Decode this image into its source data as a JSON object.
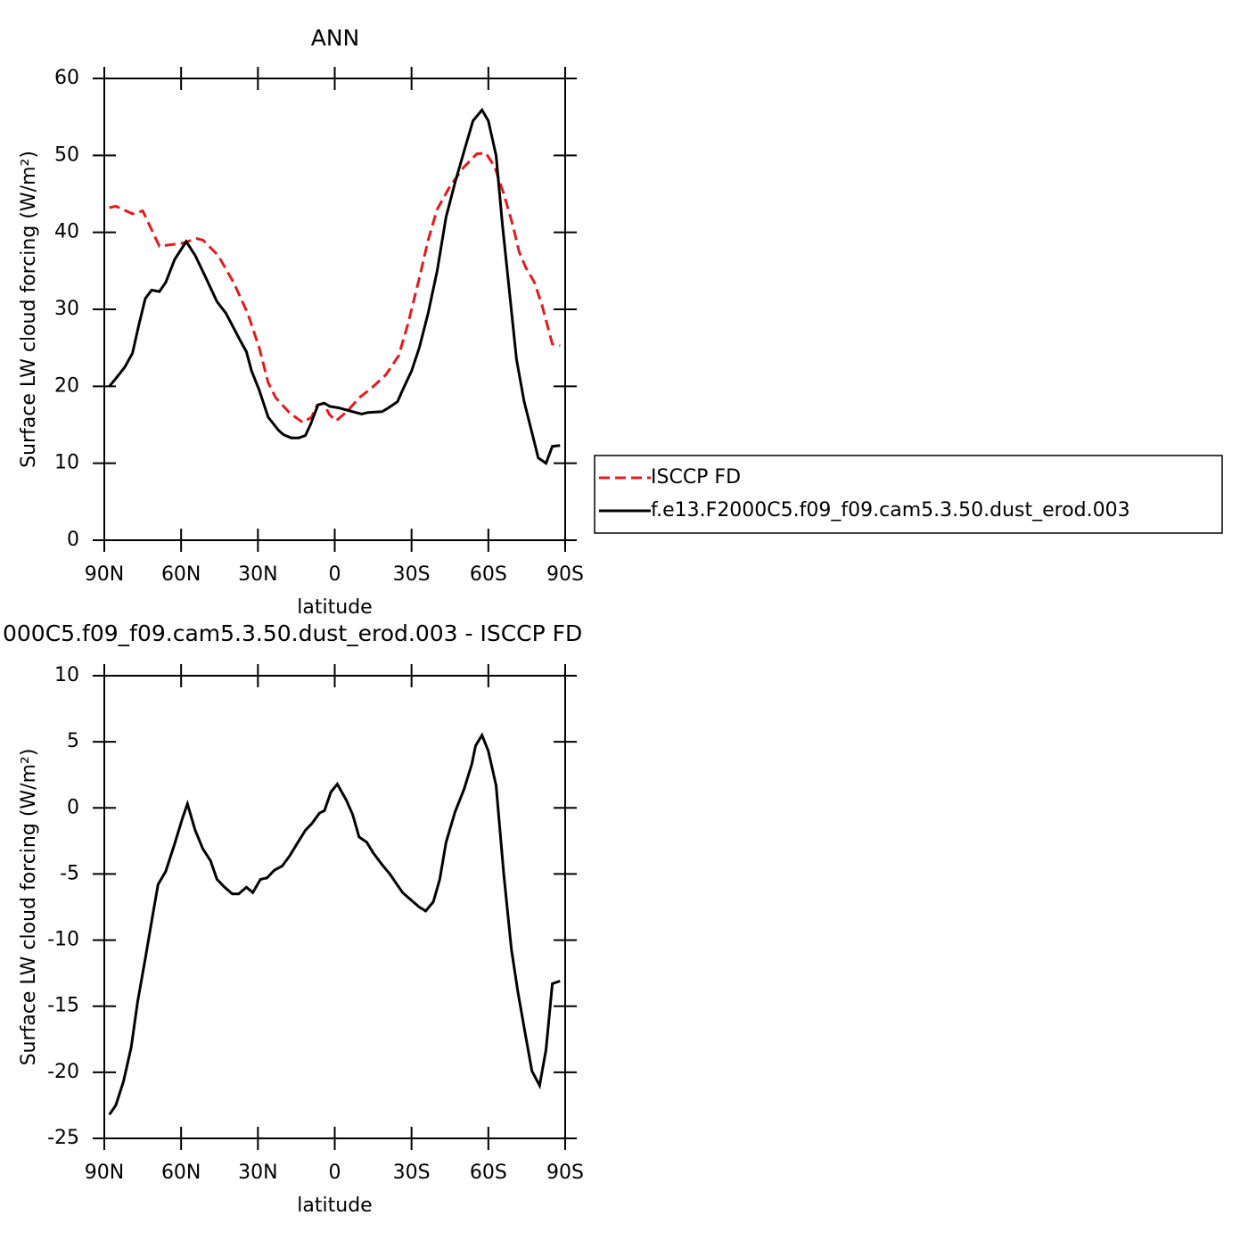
{
  "chart_data": [
    {
      "type": "line",
      "title": "ANN",
      "xlabel": "latitude",
      "ylabel": "Surface LW cloud forcing (W/m²)",
      "xlim": [
        90,
        -90
      ],
      "xticks": [
        {
          "value": 90,
          "label": "90N"
        },
        {
          "value": 60,
          "label": "60N"
        },
        {
          "value": 30,
          "label": "30N"
        },
        0,
        {
          "value": -30,
          "label": "30S"
        },
        {
          "value": -60,
          "label": "60S"
        },
        {
          "value": -90,
          "label": "90S"
        }
      ],
      "ylim": [
        0,
        60
      ],
      "yticks": [
        0,
        10,
        20,
        30,
        40,
        50,
        60
      ],
      "legend": "right",
      "series": [
        {
          "name": "ISCCP FD",
          "color": "#e41a1c",
          "line_style": "dashed",
          "x": [
            88,
            85.5,
            79,
            75,
            68.5,
            59.5,
            54,
            51.5,
            45.5,
            39.5,
            34,
            29.5,
            26,
            23,
            17.5,
            12.5,
            9,
            7,
            4.5,
            2,
            -0.5,
            -5,
            -9.5,
            -14.5,
            -20,
            -25,
            -28.5,
            -33,
            -36.5,
            -40,
            -45,
            -50.5,
            -55.5,
            -59,
            -62.5,
            -66,
            -69.5,
            -72,
            -74.5,
            -78,
            -81,
            -85,
            -88
          ],
          "values": [
            43.2,
            43.4,
            42.4,
            42.8,
            38.2,
            38.6,
            39.2,
            39.0,
            37.0,
            33.5,
            29.5,
            25,
            20.5,
            18.5,
            16.5,
            15.3,
            16.0,
            17.5,
            17.8,
            16.3,
            15.5,
            16.8,
            18.5,
            19.8,
            21.5,
            24,
            28,
            34,
            39,
            43,
            46,
            48.5,
            50.2,
            50.3,
            48.5,
            45,
            41,
            37.5,
            35.5,
            33.5,
            30.5,
            25.5,
            25.3
          ]
        },
        {
          "name": "f.e13.F2000C5.f09_f09.cam5.3.50.dust_erod.003",
          "color": "#000000",
          "line_style": "solid",
          "x": [
            88,
            85.5,
            82,
            79,
            76.5,
            74,
            71.5,
            68.5,
            66,
            62.5,
            58,
            54.5,
            50.5,
            46,
            42.5,
            37,
            34.5,
            32.5,
            29.5,
            26,
            22,
            20,
            17,
            14,
            11.5,
            9.5,
            6.5,
            4,
            2,
            -1.5,
            -6,
            -10.5,
            -13,
            -18.5,
            -21,
            -24.5,
            -26.5,
            -30,
            -33,
            -36.5,
            -40,
            -43.5,
            -47,
            -50.5,
            -54,
            -57.5,
            -60,
            -63,
            -65.5,
            -68.5,
            -71,
            -74,
            -77,
            -79.5,
            -82.5,
            -85,
            -88
          ],
          "values": [
            20,
            21,
            22.5,
            24.3,
            28,
            31.4,
            32.5,
            32.3,
            33.5,
            36.5,
            38.8,
            37,
            34.2,
            31,
            29.5,
            26,
            24.5,
            22,
            19.5,
            16,
            14.3,
            13.7,
            13.3,
            13.3,
            13.6,
            15,
            17.6,
            17.8,
            17.4,
            17.2,
            16.8,
            16.4,
            16.6,
            16.7,
            17.2,
            18,
            19.5,
            22,
            25,
            29.5,
            35,
            42,
            46.5,
            50.5,
            54.5,
            55.9,
            54.5,
            50,
            41,
            31.5,
            23.5,
            18,
            14,
            10.7,
            10,
            12.2,
            12.3
          ]
        }
      ]
    },
    {
      "type": "line",
      "title": "000C5.f09_f09.cam5.3.50.dust_erod.003 - ISCCP FD",
      "xlabel": "latitude",
      "ylabel": "Surface LW cloud forcing (W/m²)",
      "xlim": [
        90,
        -90
      ],
      "xticks": [
        {
          "value": 90,
          "label": "90N"
        },
        {
          "value": 60,
          "label": "60N"
        },
        {
          "value": 30,
          "label": "30N"
        },
        0,
        {
          "value": -30,
          "label": "30S"
        },
        {
          "value": -60,
          "label": "60S"
        },
        {
          "value": -90,
          "label": "90S"
        }
      ],
      "ylim": [
        -25,
        10
      ],
      "yticks": [
        -25,
        -20,
        -15,
        -10,
        -5,
        0,
        5,
        10
      ],
      "series": [
        {
          "color": "#000000",
          "line_style": "solid",
          "x": [
            88,
            85.5,
            82.5,
            79.5,
            77,
            74,
            71,
            69,
            66,
            62.5,
            59.5,
            57.5,
            54.5,
            51.5,
            48.5,
            46,
            43,
            40,
            37.5,
            34.5,
            32,
            29,
            26.5,
            23.5,
            20.5,
            17.5,
            15,
            11.5,
            9,
            6,
            4,
            1.5,
            -1,
            -4.5,
            -7,
            -9.5,
            -12.5,
            -15,
            -18.5,
            -21.5,
            -24,
            -26.5,
            -30,
            -33,
            -35.5,
            -38.5,
            -41,
            -43.5,
            -47,
            -50.5,
            -53.5,
            -55,
            -57.5,
            -60,
            -63,
            -66,
            -69,
            -71.5,
            -74.5,
            -77,
            -80,
            -82.5,
            -85,
            -88
          ],
          "values": [
            -23.2,
            -22.5,
            -20.7,
            -18.1,
            -14.7,
            -11.4,
            -8,
            -5.8,
            -4.8,
            -2.7,
            -0.8,
            0.3,
            -1.7,
            -3.1,
            -4,
            -5.4,
            -6,
            -6.5,
            -6.5,
            -6,
            -6.4,
            -5.4,
            -5.3,
            -4.7,
            -4.4,
            -3.6,
            -2.8,
            -1.7,
            -1.2,
            -0.4,
            -0.2,
            1.2,
            1.8,
            0.6,
            -0.5,
            -2.2,
            -2.6,
            -3.4,
            -4.3,
            -5.0,
            -5.7,
            -6.4,
            -7.0,
            -7.5,
            -7.8,
            -7.1,
            -5.4,
            -2.6,
            -0.3,
            1.4,
            3.3,
            4.7,
            5.5,
            4.3,
            1.7,
            -5,
            -10.7,
            -13.9,
            -17.2,
            -19.9,
            -21,
            -18.3,
            -13.3,
            -13.1
          ]
        }
      ]
    }
  ]
}
